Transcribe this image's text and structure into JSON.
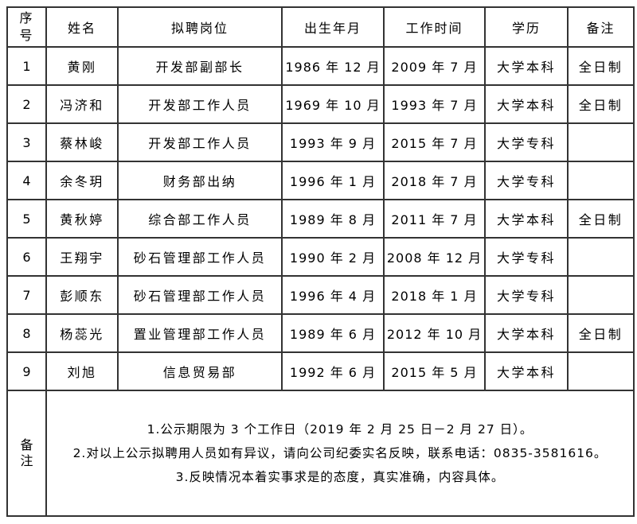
{
  "page": {
    "background": "#ffffff",
    "outer_border_color": "#474747",
    "grid_color": "#333333"
  },
  "table": {
    "columns": [
      {
        "key": "no",
        "label": "序号"
      },
      {
        "key": "name",
        "label": "姓名"
      },
      {
        "key": "position",
        "label": "拟聘岗位"
      },
      {
        "key": "birth",
        "label": "出生年月"
      },
      {
        "key": "start",
        "label": "工作时间"
      },
      {
        "key": "education",
        "label": "学历"
      },
      {
        "key": "remark",
        "label": "备注"
      }
    ],
    "rows": [
      {
        "no": "1",
        "name": "黄刚",
        "position": "开发部副部长",
        "birth": "1986 年 12 月",
        "start": "2009 年 7 月",
        "education": "大学本科",
        "remark": "全日制"
      },
      {
        "no": "2",
        "name": "冯济和",
        "position": "开发部工作人员",
        "birth": "1969 年 10 月",
        "start": "1993 年 7 月",
        "education": "大学本科",
        "remark": "全日制"
      },
      {
        "no": "3",
        "name": "蔡林峻",
        "position": "开发部工作人员",
        "birth": "1993 年 9 月",
        "start": "2015 年 7 月",
        "education": "大学专科",
        "remark": ""
      },
      {
        "no": "4",
        "name": "余冬玥",
        "position": "财务部出纳",
        "birth": "1996 年 1 月",
        "start": "2018 年 7 月",
        "education": "大学专科",
        "remark": ""
      },
      {
        "no": "5",
        "name": "黄秋婷",
        "position": "综合部工作人员",
        "birth": "1989 年 8 月",
        "start": "2011 年 7 月",
        "education": "大学本科",
        "remark": "全日制"
      },
      {
        "no": "6",
        "name": "王翔宇",
        "position": "砂石管理部工作人员",
        "birth": "1990 年 2 月",
        "start": "2008 年 12 月",
        "education": "大学专科",
        "remark": ""
      },
      {
        "no": "7",
        "name": "彭顺东",
        "position": "砂石管理部工作人员",
        "birth": "1996 年 4 月",
        "start": "2018 年 1 月",
        "education": "大学专科",
        "remark": ""
      },
      {
        "no": "8",
        "name": "杨蕊光",
        "position": "置业管理部工作人员",
        "birth": "1989 年 6 月",
        "start": "2012 年 10 月",
        "education": "大学本科",
        "remark": "全日制"
      },
      {
        "no": "9",
        "name": "刘旭",
        "position": "信息贸易部",
        "birth": "1992 年 6 月",
        "start": "2015 年 5 月",
        "education": "大学本科",
        "remark": ""
      }
    ],
    "footer": {
      "label": "备注",
      "notes": [
        "1.公示期限为 3 个工作日（2019 年 2 月 25 日－2 月 27 日）。",
        "2.对以上公示拟聘用人员如有异议，请向公司纪委实名反映，联系电话：0835-3581616。",
        "3.反映情况本着实事求是的态度，真实准确，内容具体。"
      ]
    }
  }
}
